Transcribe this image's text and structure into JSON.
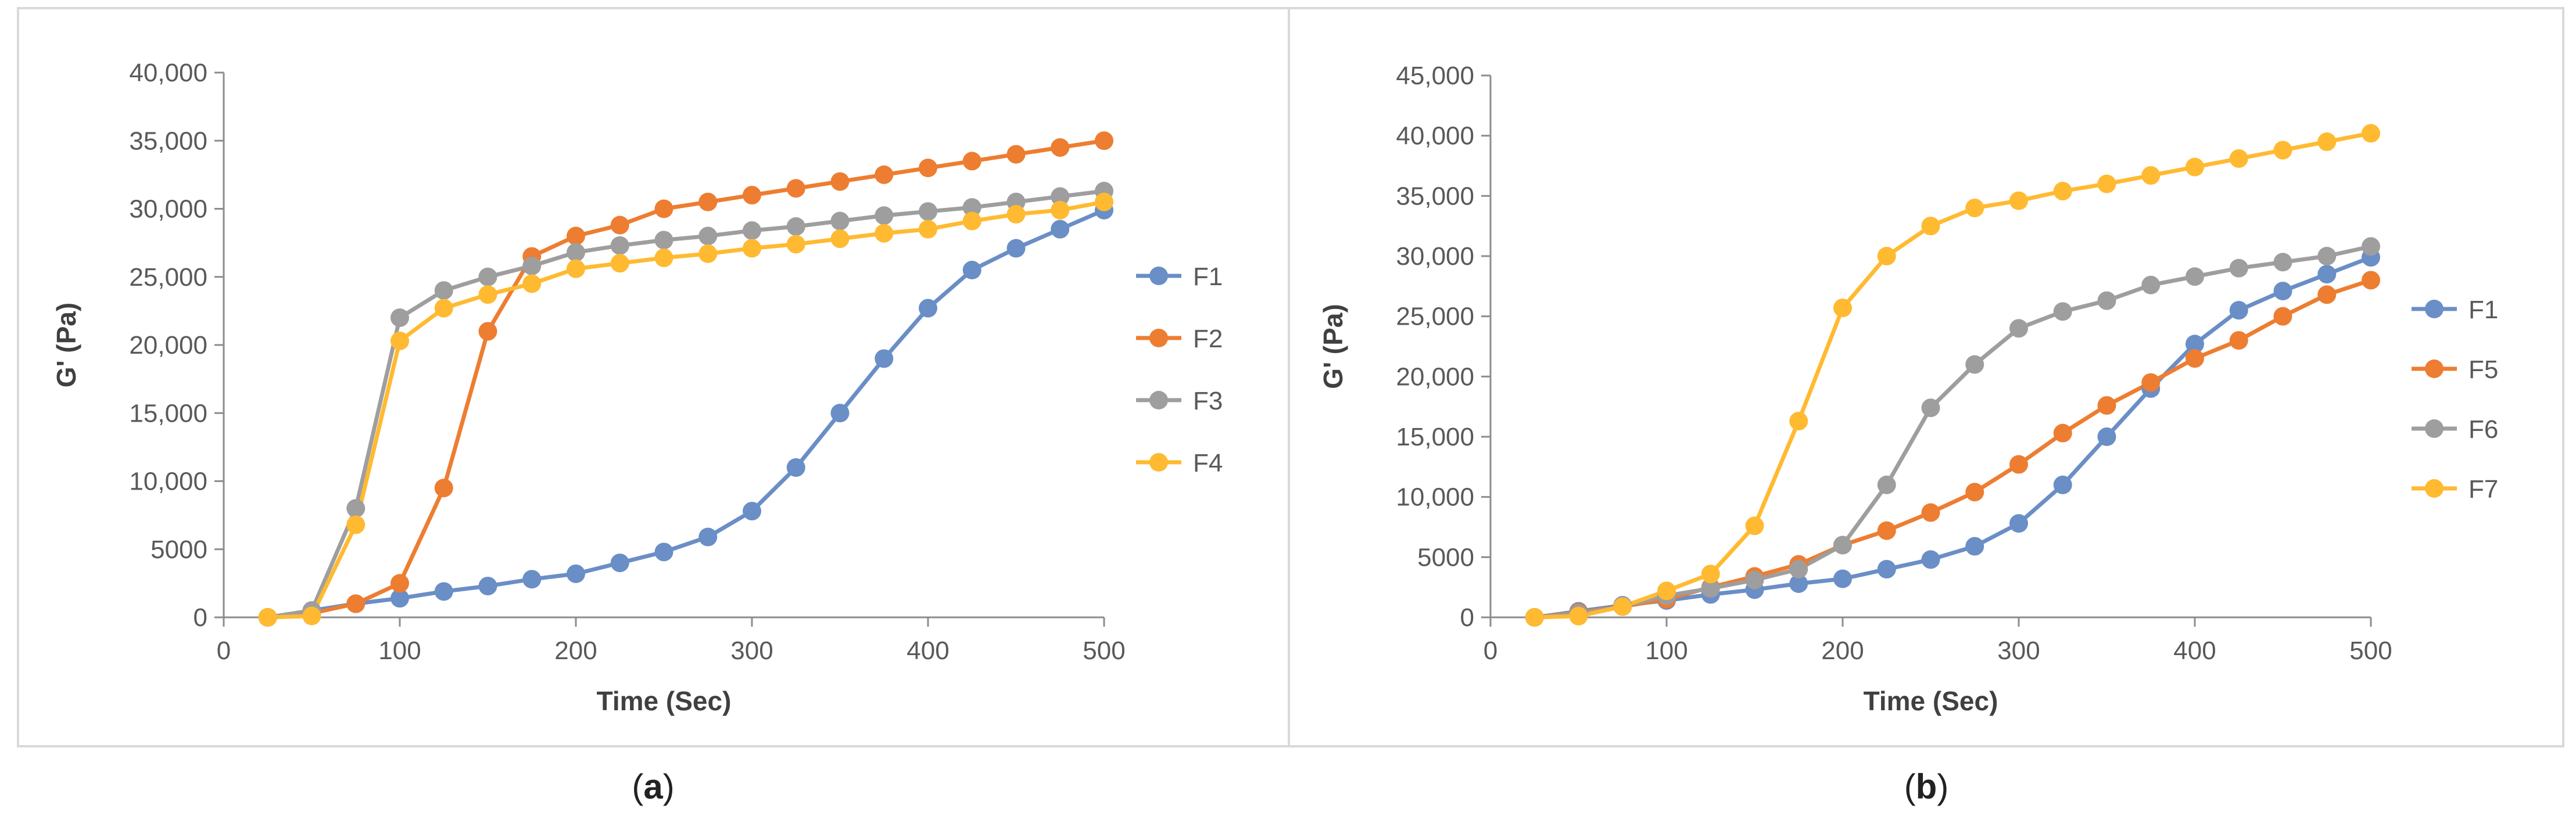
{
  "figure": {
    "panel_labels": [
      "a",
      "b"
    ]
  },
  "chart_data": [
    {
      "type": "line",
      "panel": "a",
      "title": "",
      "xlabel": "Time (Sec)",
      "ylabel": "G' (Pa)",
      "xlim": [
        0,
        500
      ],
      "ylim": [
        0,
        40000
      ],
      "x_ticks": [
        0,
        100,
        200,
        300,
        400,
        500
      ],
      "x_tick_labels": [
        "0",
        "100",
        "200",
        "300",
        "400",
        "500"
      ],
      "y_ticks": [
        0,
        5000,
        10000,
        15000,
        20000,
        25000,
        30000,
        35000,
        40000
      ],
      "y_tick_labels": [
        "0",
        "5000",
        "10,000",
        "15,000",
        "20,000",
        "25,000",
        "30,000",
        "35,000",
        "40,000"
      ],
      "grid": false,
      "legend_position": "right",
      "x": [
        25,
        50,
        75,
        100,
        125,
        150,
        175,
        200,
        225,
        250,
        275,
        300,
        325,
        350,
        375,
        400,
        425,
        450,
        475,
        500
      ],
      "series": [
        {
          "name": "F1",
          "color": "#6a8ec6",
          "values": [
            0,
            500,
            1000,
            1400,
            1900,
            2300,
            2800,
            3200,
            4000,
            4800,
            5900,
            7800,
            11000,
            15000,
            19000,
            22700,
            25500,
            27100,
            28500,
            29900
          ]
        },
        {
          "name": "F2",
          "color": "#ed7d31",
          "values": [
            0,
            300,
            1000,
            2500,
            9500,
            21000,
            26500,
            28000,
            28800,
            30000,
            30500,
            31000,
            31500,
            32000,
            32500,
            33000,
            33500,
            34000,
            34500,
            35000
          ]
        },
        {
          "name": "F3",
          "color": "#9e9e9e",
          "values": [
            0,
            500,
            8000,
            22000,
            24000,
            25000,
            25800,
            26800,
            27300,
            27700,
            28000,
            28400,
            28700,
            29100,
            29500,
            29800,
            30100,
            30500,
            30900,
            31300
          ]
        },
        {
          "name": "F4",
          "color": "#ffba31",
          "values": [
            0,
            100,
            6800,
            20300,
            22700,
            23700,
            24500,
            25600,
            26000,
            26400,
            26700,
            27100,
            27400,
            27800,
            28200,
            28500,
            29100,
            29600,
            29900,
            30500
          ]
        }
      ]
    },
    {
      "type": "line",
      "panel": "b",
      "title": "",
      "xlabel": "Time (Sec)",
      "ylabel": "G' (Pa)",
      "xlim": [
        0,
        500
      ],
      "ylim": [
        0,
        45000
      ],
      "x_ticks": [
        0,
        100,
        200,
        300,
        400,
        500
      ],
      "x_tick_labels": [
        "0",
        "100",
        "200",
        "300",
        "400",
        "500"
      ],
      "y_ticks": [
        0,
        5000,
        10000,
        15000,
        20000,
        25000,
        30000,
        35000,
        40000,
        45000
      ],
      "y_tick_labels": [
        "0",
        "5000",
        "10,000",
        "15,000",
        "20,000",
        "25,000",
        "30,000",
        "35,000",
        "40,000",
        "45,000"
      ],
      "grid": false,
      "legend_position": "right",
      "x": [
        25,
        50,
        75,
        100,
        125,
        150,
        175,
        200,
        225,
        250,
        275,
        300,
        325,
        350,
        375,
        400,
        425,
        450,
        475,
        500
      ],
      "series": [
        {
          "name": "F1",
          "color": "#6a8ec6",
          "values": [
            0,
            500,
            1000,
            1400,
            1900,
            2300,
            2800,
            3200,
            4000,
            4800,
            5900,
            7800,
            11000,
            15000,
            19000,
            22700,
            25500,
            27100,
            28500,
            29900
          ]
        },
        {
          "name": "F5",
          "color": "#ed7d31",
          "values": [
            0,
            400,
            900,
            1500,
            2500,
            3400,
            4400,
            6000,
            7200,
            8700,
            10400,
            12700,
            15300,
            17600,
            19500,
            21500,
            23000,
            25000,
            26800,
            28000
          ]
        },
        {
          "name": "F6",
          "color": "#9e9e9e",
          "values": [
            0,
            300,
            900,
            1800,
            2400,
            3100,
            4000,
            6000,
            11000,
            17400,
            21000,
            24000,
            25400,
            26300,
            27600,
            28300,
            29000,
            29500,
            30000,
            30800
          ]
        },
        {
          "name": "F7",
          "color": "#ffba31",
          "values": [
            0,
            100,
            900,
            2200,
            3600,
            7600,
            16300,
            25700,
            30000,
            32500,
            34000,
            34600,
            35400,
            36000,
            36700,
            37400,
            38100,
            38800,
            39500,
            40200
          ]
        }
      ]
    }
  ]
}
